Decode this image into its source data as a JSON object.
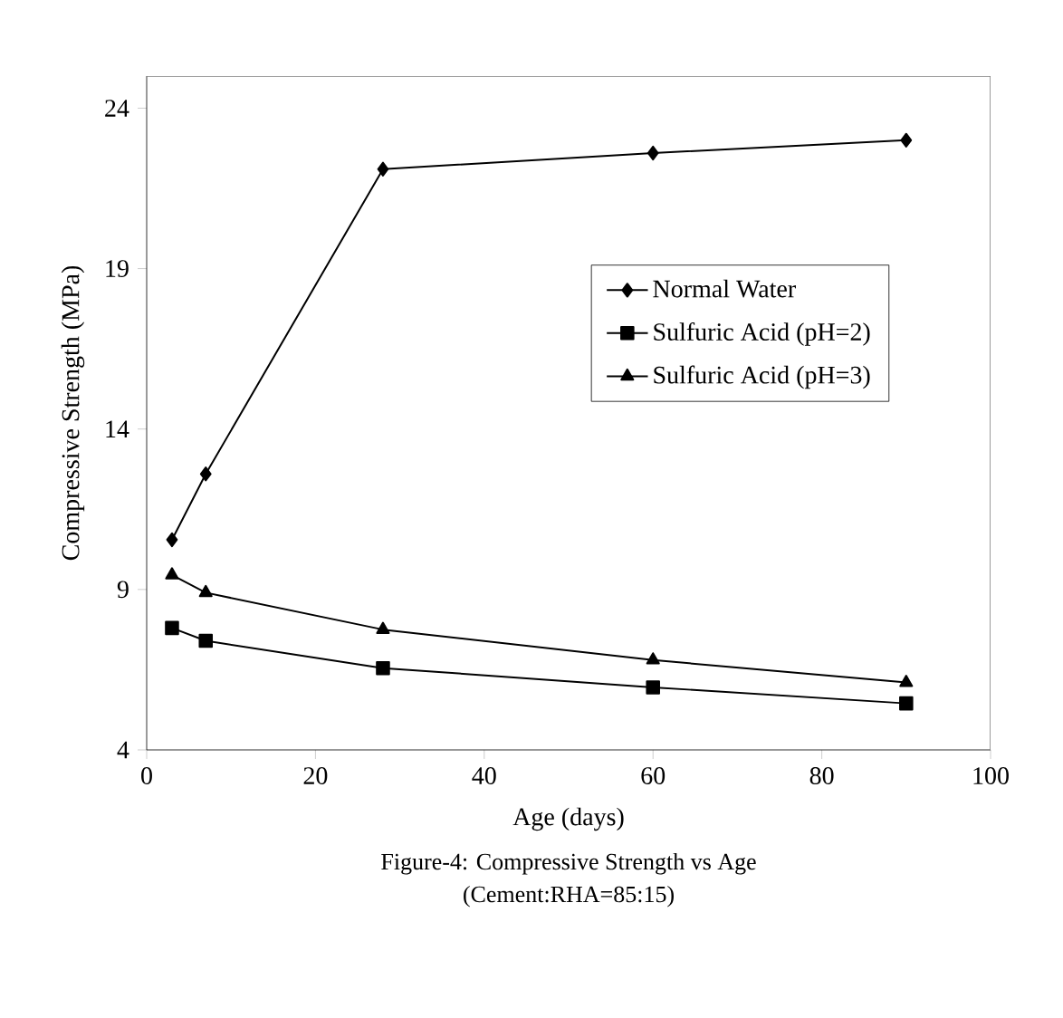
{
  "chart_data": {
    "type": "line",
    "xlabel": "Age (days)",
    "ylabel": "Compressive Strength (MPa)",
    "annotations": [
      "Figure-4: Compressive Strength vs Age",
      "(Cement:RHA=85:15)"
    ],
    "x": [
      3,
      7,
      28,
      60,
      90
    ],
    "series": [
      {
        "name": "Normal Water",
        "color": "#000000",
        "marker": "diamond",
        "values": [
          10.55,
          12.6,
          22.1,
          22.6,
          23.0
        ]
      },
      {
        "name": "Sulfuric Acid (pH=2)",
        "color": "#000000",
        "marker": "square",
        "values": [
          7.8,
          7.4,
          6.55,
          5.95,
          5.45
        ]
      },
      {
        "name": "Sulfuric Acid (pH=3)",
        "color": "#000000",
        "marker": "triangle",
        "values": [
          9.45,
          8.9,
          7.75,
          6.8,
          6.1
        ]
      }
    ],
    "xlim": [
      0,
      100
    ],
    "xticks": [
      0,
      20,
      40,
      60,
      80,
      100
    ],
    "ylim": [
      4,
      25
    ],
    "yticks": [
      4,
      9,
      14,
      19,
      24
    ],
    "grid": false,
    "legend": "right",
    "line_style": "solid"
  }
}
